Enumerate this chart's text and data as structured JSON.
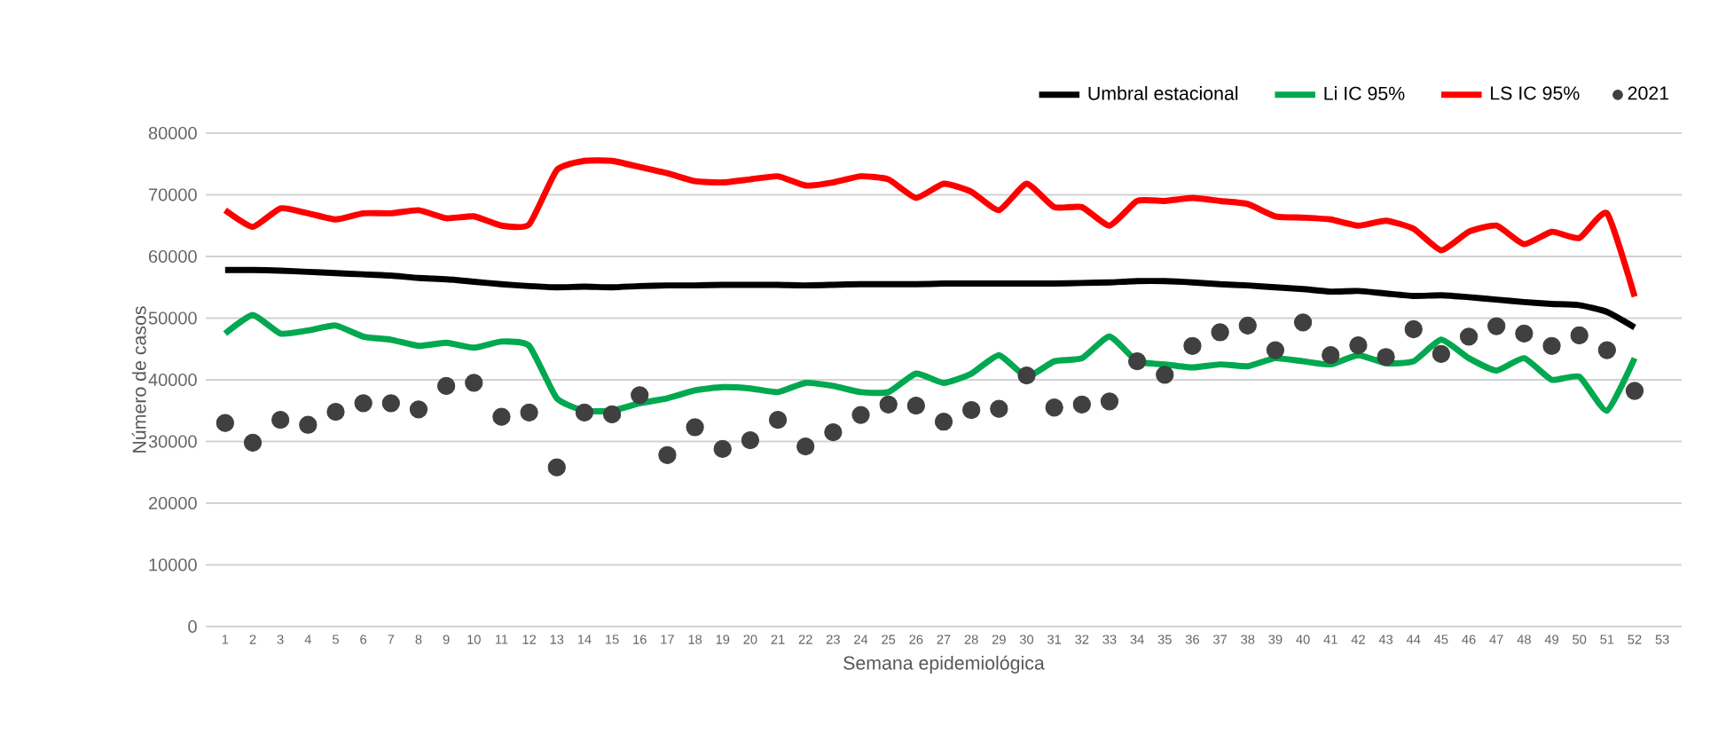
{
  "chart_data": {
    "type": "line",
    "xlabel": "Semana epidemiológica",
    "ylabel": "Número de casos",
    "categories": [
      "1",
      "2",
      "3",
      "4",
      "5",
      "6",
      "7",
      "8",
      "9",
      "10",
      "11",
      "12",
      "13",
      "14",
      "15",
      "16",
      "17",
      "18",
      "19",
      "20",
      "21",
      "22",
      "23",
      "24",
      "25",
      "26",
      "27",
      "28",
      "29",
      "30",
      "31",
      "32",
      "33",
      "34",
      "35",
      "36",
      "37",
      "38",
      "39",
      "40",
      "41",
      "42",
      "43",
      "44",
      "45",
      "46",
      "47",
      "48",
      "49",
      "50",
      "51",
      "52",
      "53"
    ],
    "ylim": [
      0,
      80000
    ],
    "yticks": [
      0,
      10000,
      20000,
      30000,
      40000,
      50000,
      60000,
      70000,
      80000
    ],
    "grid": "y",
    "legend": "top right",
    "series": [
      {
        "name": "Umbral estacional",
        "color": "#000000",
        "values": [
          57800,
          57800,
          57700,
          57500,
          57300,
          57100,
          56900,
          56500,
          56300,
          55900,
          55500,
          55200,
          55000,
          55100,
          55000,
          55200,
          55300,
          55300,
          55400,
          55400,
          55400,
          55300,
          55400,
          55500,
          55500,
          55500,
          55600,
          55600,
          55600,
          55600,
          55600,
          55700,
          55800,
          56000,
          56000,
          55800,
          55500,
          55300,
          55000,
          54700,
          54300,
          54400,
          54000,
          53600,
          53700,
          53400,
          53000,
          52600,
          52300,
          52100,
          51000,
          48500,
          null
        ]
      },
      {
        "name": "Li IC 95%",
        "color": "#00a84f",
        "values": [
          47500,
          50500,
          47500,
          48000,
          48800,
          47000,
          46500,
          45500,
          46000,
          45200,
          46200,
          45500,
          37000,
          35000,
          35000,
          36200,
          37000,
          38300,
          38800,
          38600,
          38000,
          39500,
          39000,
          38000,
          38000,
          41000,
          39500,
          41000,
          44000,
          40500,
          43000,
          43500,
          47000,
          43000,
          42500,
          42000,
          42500,
          42200,
          43500,
          43000,
          42500,
          44000,
          42700,
          43000,
          46500,
          43500,
          41500,
          43500,
          40000,
          40500,
          35000,
          43500,
          null
        ]
      },
      {
        "name": "LS IC 95%",
        "color": "#ff0000",
        "values": [
          67500,
          64800,
          67800,
          67000,
          66000,
          67000,
          67000,
          67500,
          66200,
          66500,
          65000,
          65200,
          74000,
          75500,
          75500,
          74500,
          73500,
          72200,
          72000,
          72500,
          73000,
          71500,
          72000,
          73000,
          72500,
          69500,
          71800,
          70500,
          67500,
          71800,
          68000,
          68000,
          65000,
          69000,
          69000,
          69500,
          69000,
          68500,
          66500,
          66300,
          66000,
          65000,
          65800,
          64500,
          61000,
          64000,
          65000,
          62000,
          64000,
          63000,
          67000,
          53500,
          null
        ]
      },
      {
        "name": "2021",
        "type": "scatter",
        "marker": "circle",
        "color": "#404040",
        "values": [
          33000,
          29800,
          33500,
          32700,
          34800,
          36200,
          36200,
          35200,
          39000,
          39500,
          34000,
          34700,
          25800,
          34700,
          34400,
          37500,
          27800,
          32300,
          28800,
          30200,
          33500,
          29200,
          31500,
          34300,
          36000,
          35800,
          33200,
          35100,
          35300,
          40700,
          35500,
          36000,
          36500,
          43000,
          40800,
          45500,
          47700,
          48800,
          44800,
          49300,
          44000,
          45600,
          43700,
          48200,
          44200,
          47000,
          48700,
          47500,
          45500,
          47200,
          44800,
          38200,
          null
        ]
      }
    ]
  }
}
